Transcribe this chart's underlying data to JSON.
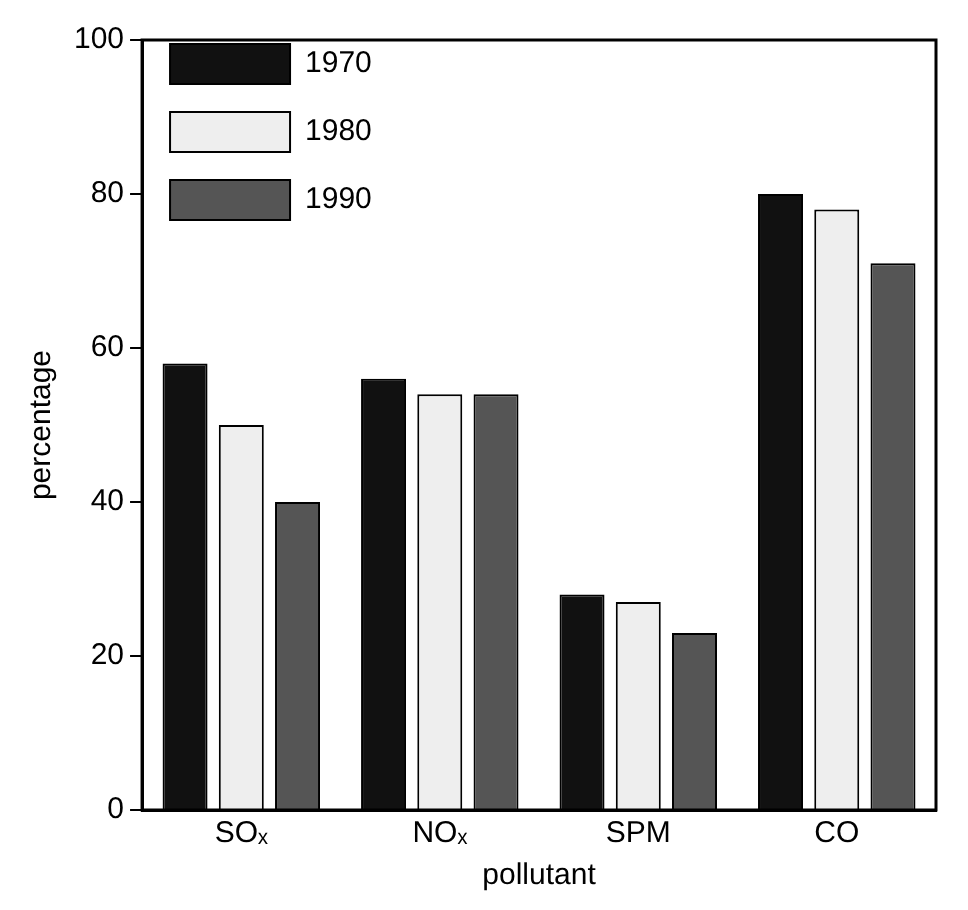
{
  "chart_data": {
    "type": "bar",
    "xlabel": "pollutant",
    "ylabel": "percentage",
    "categories": [
      "SOₓ",
      "NOₓ",
      "SPM",
      "CO"
    ],
    "series": [
      {
        "name": "1970",
        "color": "#111111",
        "values": [
          58,
          56,
          28,
          80
        ]
      },
      {
        "name": "1980",
        "color": "#eeeeee",
        "values": [
          50,
          54,
          27,
          78
        ]
      },
      {
        "name": "1990",
        "color": "#555555",
        "values": [
          40,
          54,
          23,
          71
        ]
      }
    ],
    "ylim": [
      0,
      100
    ],
    "yticks": [
      0,
      20,
      40,
      60,
      80,
      100
    ],
    "grid": false,
    "legend": "top left"
  }
}
